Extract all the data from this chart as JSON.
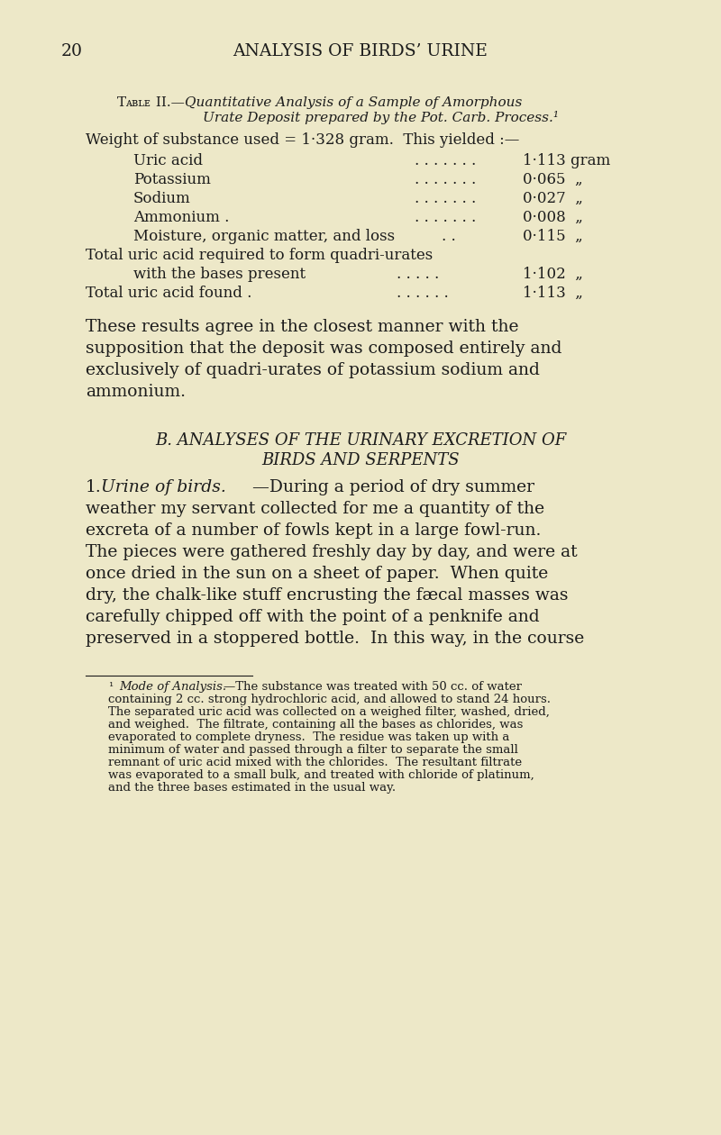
{
  "bg_color": "#ede8c8",
  "page_number": "20",
  "header": "ANALYSIS OF BIRDS’ URINE",
  "table_title_line1": "Tᴀʙʟᴇ II.—Quantitative Analysis of a Sample of Amorphous",
  "table_title_line2": "Urate Deposit prepared by the Pot. Carb. Process.¹",
  "weight_line": "Weight of substance used = 1·328 gram.  This yielded :—",
  "row_labels": [
    "Uric acid",
    "Potassium",
    "Sodium",
    "Ammonium .",
    "Moisture, organic matter, and loss"
  ],
  "row_dots": [
    ". . . . . . .",
    ". . . . . . .",
    ". . . . . . .",
    ". . . . . . .",
    ". ."
  ],
  "row_values": [
    "1·113 gram",
    "0·065  „",
    "0·027  „",
    "0·008  „",
    "0·115  „"
  ],
  "total1_label": "Total uric acid required to form quadri-urates",
  "total2_label": "with the bases present",
  "total2_dots": ". . . . .",
  "total2_value": "1·102  „",
  "found_label": "Total uric acid found .",
  "found_dots": ". . . . . .",
  "found_value": "1·113  „",
  "para1_lines": [
    "These results agree in the closest manner with the",
    "supposition that the deposit was composed entirely and",
    "exclusively of quadri-urates of potassium sodium and",
    "ammonium."
  ],
  "section_h1": "B. ANALYSES OF THE URINARY EXCRETION OF",
  "section_h2": "BIRDS AND SERPENTS",
  "sub1_num": "1.",
  "sub1_italic": "Urine of birds.",
  "sub1_dash": "—During a period of dry summer",
  "sub1_lines": [
    "weather my servant collected for me a quantity of the",
    "excreta of a number of fowls kept in a large fowl-run.",
    "The pieces were gathered freshly day by day, and were at",
    "once dried in the sun on a sheet of paper.  When quite",
    "dry, the chalk-like stuff encrusting the fæcal masses was",
    "carefully chipped off with the point of a penknife and",
    "preserved in a stoppered bottle.  In this way, in the course"
  ],
  "fn_super": "¹",
  "fn_italic": "Mode of Analysis.",
  "fn_dash": "—The substance was treated with 50 cc. of water",
  "fn_lines": [
    "containing 2 cc. strong hydrochloric acid, and allowed to stand 24 hours.",
    "The separated uric acid was collected on a weighed filter, washed, dried,",
    "and weighed.  The filtrate, containing all the bases as chlorides, was",
    "evaporated to complete dryness.  The residue was taken up with a",
    "minimum of water and passed through a filter to separate the small",
    "remnant of uric acid mixed with the chlorides.  The resultant filtrate",
    "was evaporated to a small bulk, and treated with chloride of platinum,",
    "and the three bases estimated in the usual way."
  ]
}
